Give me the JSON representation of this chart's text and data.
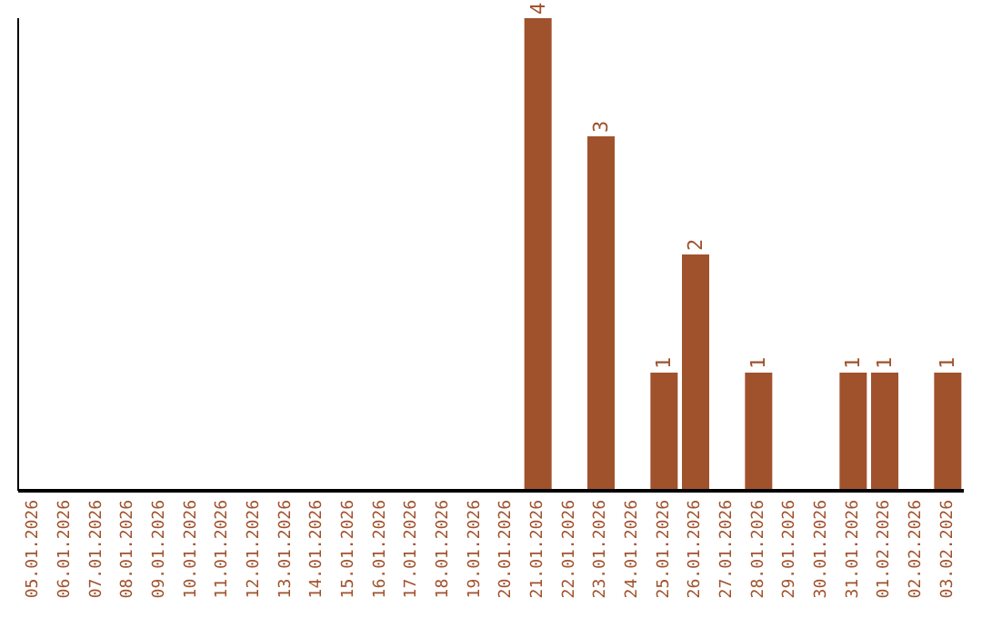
{
  "chart_data": {
    "type": "bar",
    "categories": [
      "05.01.2026",
      "06.01.2026",
      "07.01.2026",
      "08.01.2026",
      "09.01.2026",
      "10.01.2026",
      "11.01.2026",
      "12.01.2026",
      "13.01.2026",
      "14.01.2026",
      "15.01.2026",
      "16.01.2026",
      "17.01.2026",
      "18.01.2026",
      "19.01.2026",
      "20.01.2026",
      "21.01.2026",
      "22.01.2026",
      "23.01.2026",
      "24.01.2026",
      "25.01.2026",
      "26.01.2026",
      "27.01.2026",
      "28.01.2026",
      "29.01.2026",
      "30.01.2026",
      "31.01.2026",
      "01.02.2026",
      "02.02.2026",
      "03.02.2026"
    ],
    "values": [
      null,
      null,
      null,
      null,
      null,
      null,
      null,
      null,
      null,
      null,
      null,
      null,
      null,
      null,
      null,
      null,
      4,
      null,
      3,
      null,
      1,
      2,
      null,
      1,
      null,
      null,
      1,
      1,
      null,
      1
    ],
    "color": "#a0522d",
    "data_labels": true,
    "tick_labels": "x",
    "grid": false
  }
}
